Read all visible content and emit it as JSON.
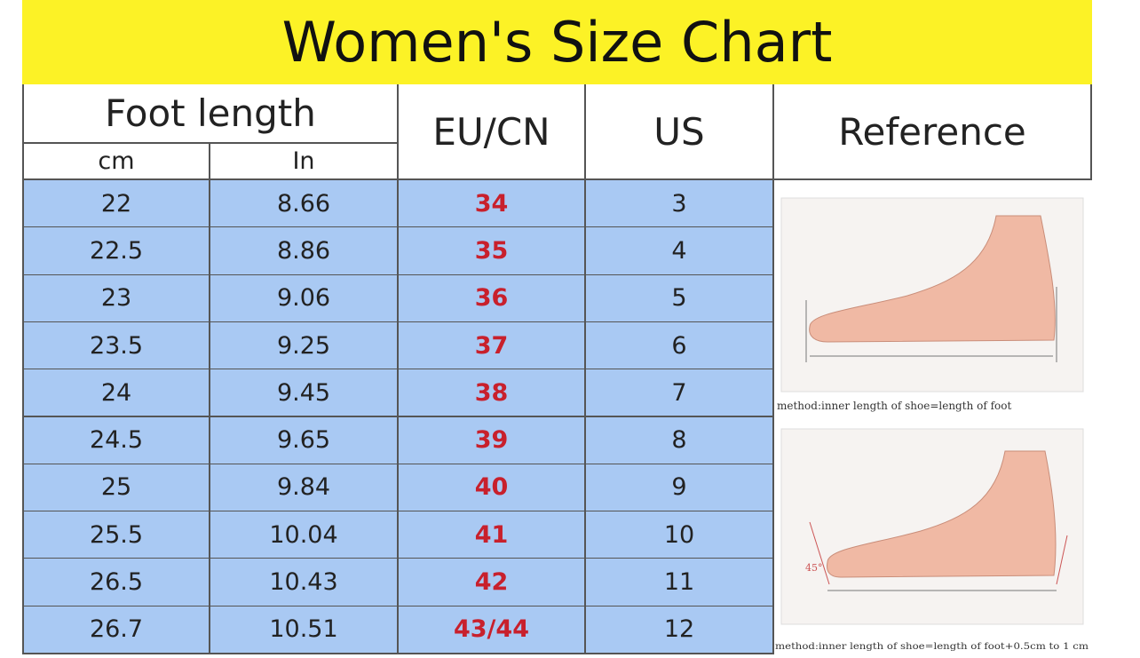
{
  "header": {
    "title": "Women's Size Chart"
  },
  "table": {
    "columns": {
      "foot_length": "Foot length",
      "cm": "cm",
      "in": "In",
      "eu_cn": "EU/CN",
      "us": "US",
      "reference": "Reference"
    },
    "rows": [
      [
        "22",
        "8.66",
        "34",
        "3"
      ],
      [
        "22.5",
        "8.86",
        "35",
        "4"
      ],
      [
        "23",
        "9.06",
        "36",
        "5"
      ],
      [
        "23.5",
        "9.25",
        "37",
        "6"
      ],
      [
        "24",
        "9.45",
        "38",
        "7"
      ],
      [
        "24.5",
        "9.65",
        "39",
        "8"
      ],
      [
        "25",
        "9.84",
        "40",
        "9"
      ],
      [
        "25.5",
        "10.04",
        "41",
        "10"
      ],
      [
        "26.5",
        "10.43",
        "42",
        "11"
      ],
      [
        "26.7",
        "10.51",
        "43/44",
        "12"
      ]
    ]
  },
  "reference": {
    "captions": [
      "method:inner length of shoe=length of foot",
      "method:inner length of shoe=length of foot+0.5cm to 1 cm"
    ],
    "angle_label": "45°"
  }
}
